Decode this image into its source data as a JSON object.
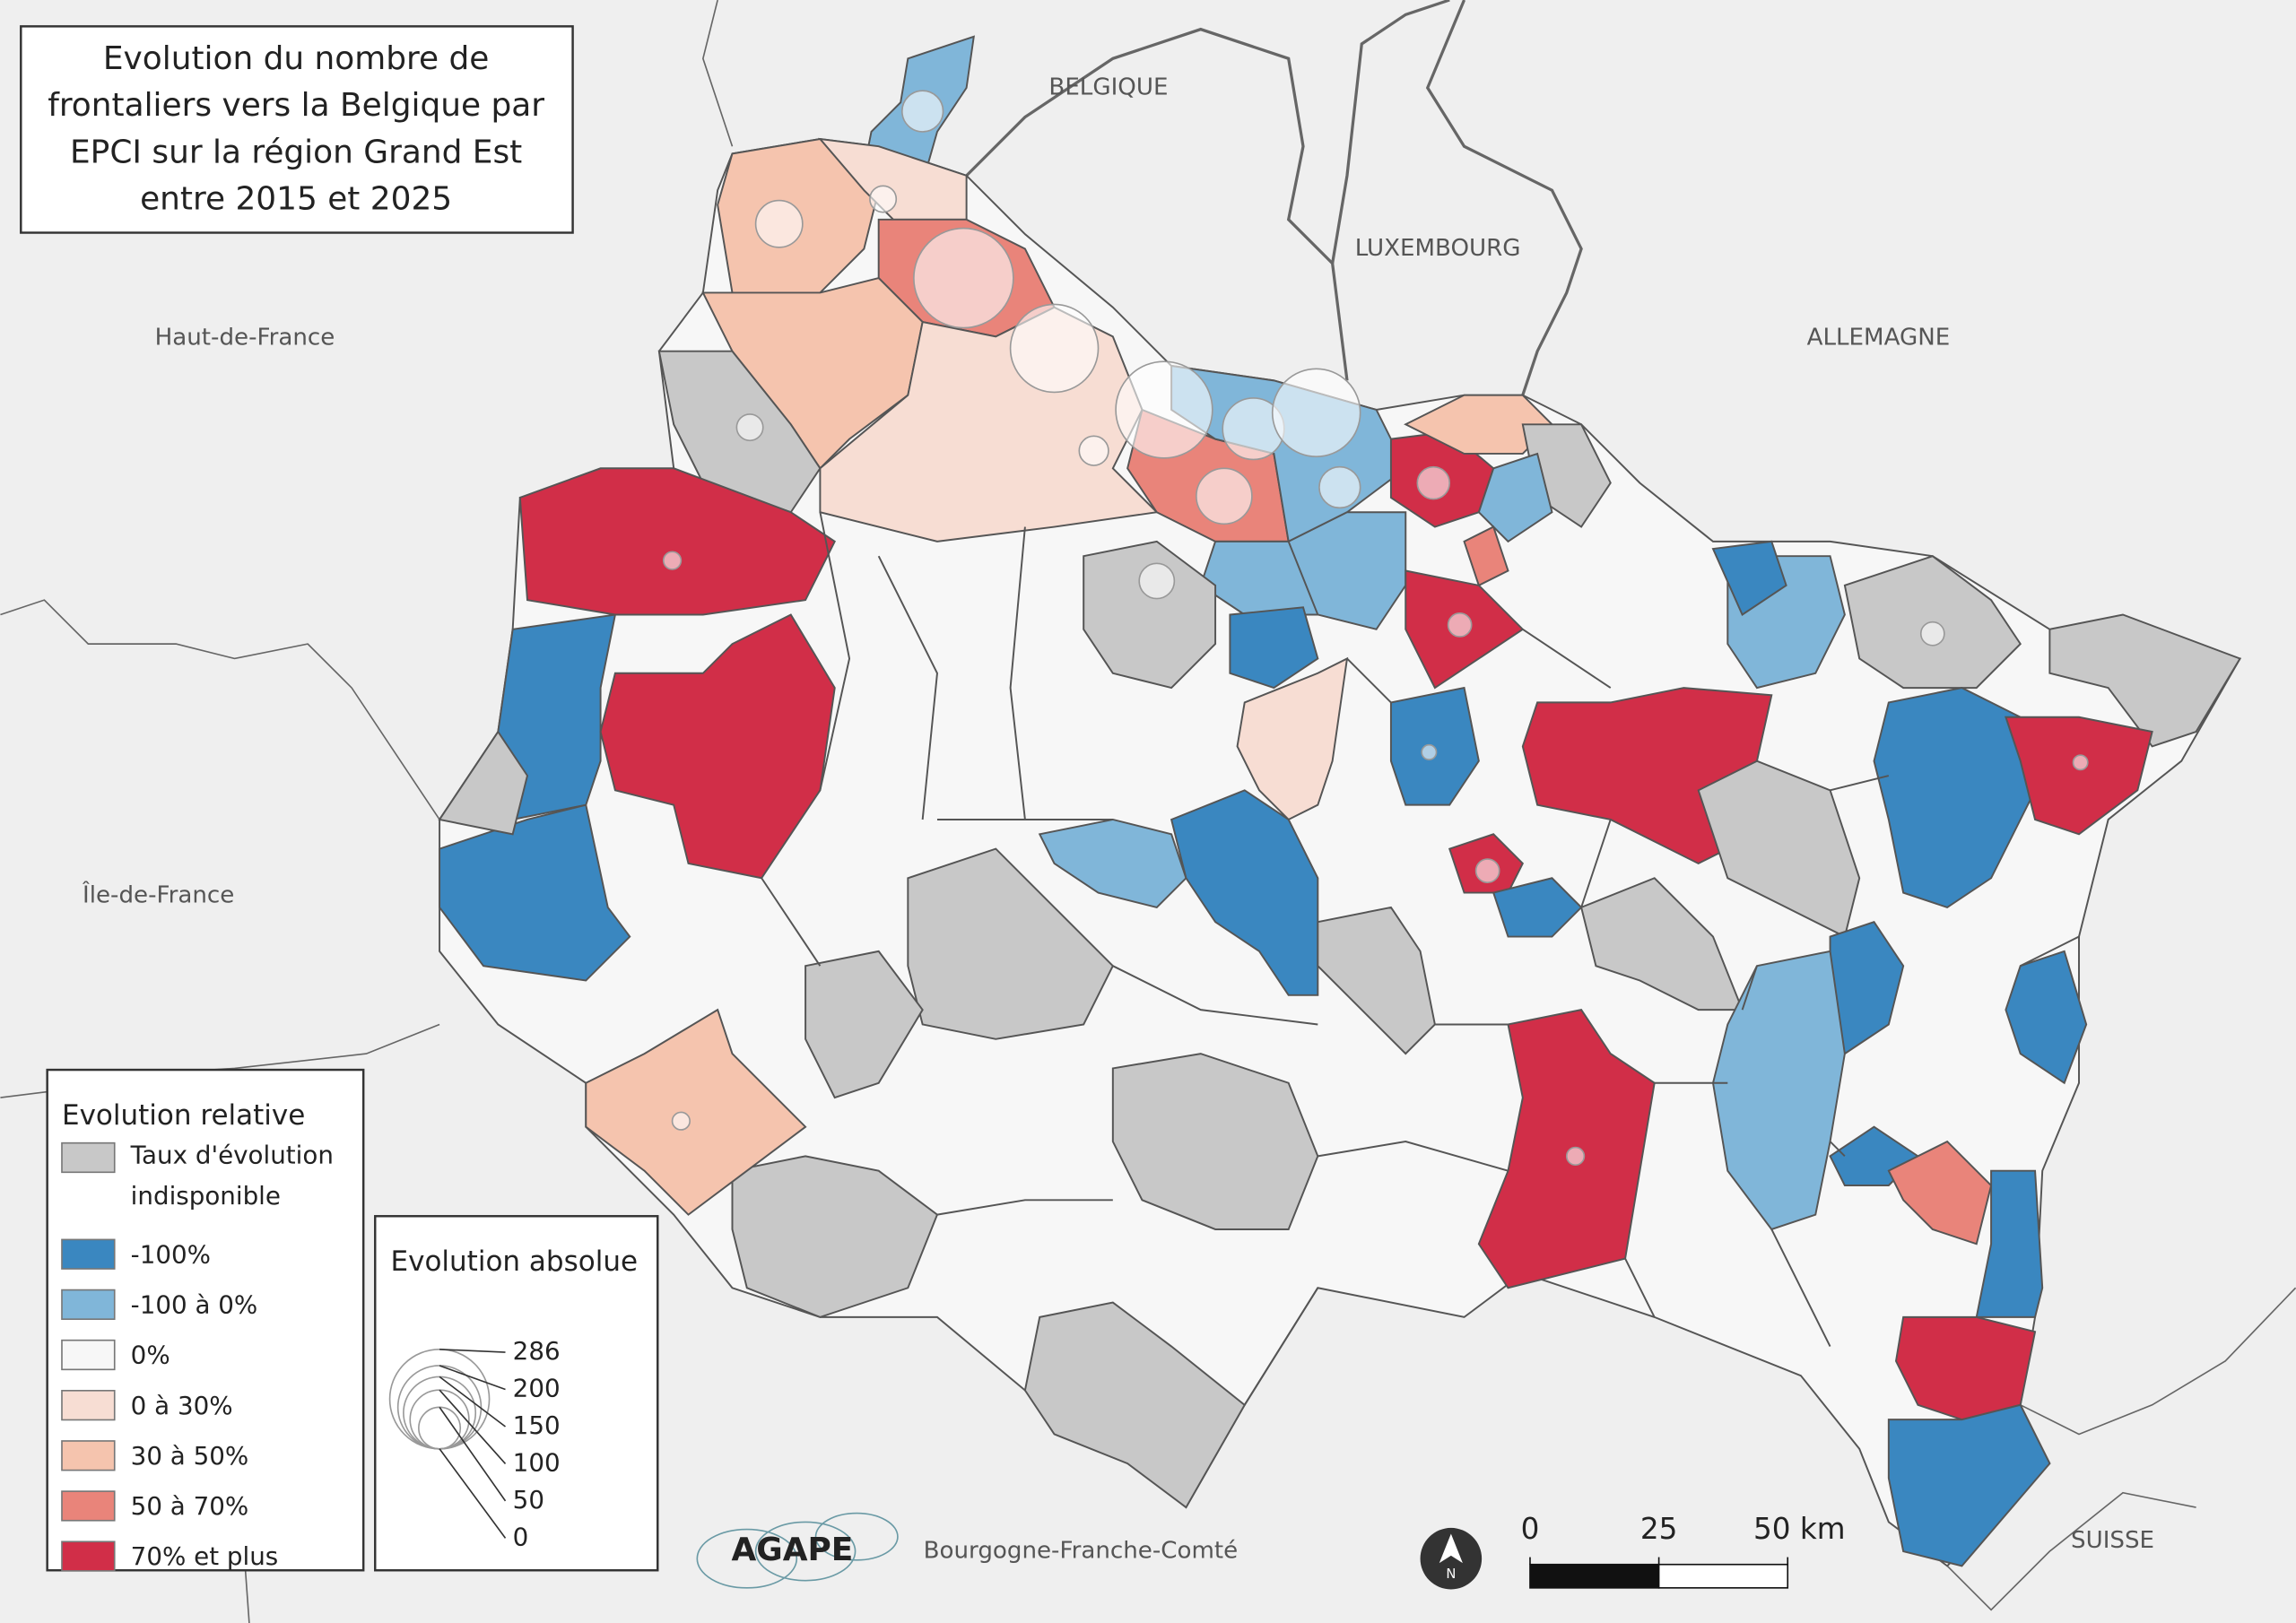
{
  "title_lines": [
    "Evolution du nombre de",
    "frontaliers vers la Belgique par",
    "EPCI sur la région Grand Est",
    "entre 2015 et 2025"
  ],
  "places": [
    "BELGIQUE",
    "LUXEMBOURG",
    "ALLEMAGNE",
    "Haut-de-France",
    "Île-de-France",
    "Bourgogne-Franche-Comté",
    "SUISSE"
  ],
  "legend_relative": {
    "title": "Evolution relative",
    "items": [
      {
        "label": [
          "Taux d'évolution",
          "indisponible"
        ],
        "color": "#c8c8c8"
      },
      {
        "label": "-100%",
        "color": "#3a87c0"
      },
      {
        "label": "-100 à 0%",
        "color": "#80b6d9"
      },
      {
        "label": "0%",
        "color": "#f7f7f7"
      },
      {
        "label": "0 à 30%",
        "color": "#f7ddd3"
      },
      {
        "label": "30 à 50%",
        "color": "#f5c4ae"
      },
      {
        "label": "50 à 70%",
        "color": "#e9847a"
      },
      {
        "label": "70% et plus",
        "color": "#d12e48"
      }
    ]
  },
  "legend_absolute": {
    "title": "Evolution absolue",
    "sizes": [
      286,
      200,
      150,
      100,
      50,
      0
    ]
  },
  "north": "N",
  "scale_bar": {
    "ticks": [
      0,
      25,
      {
        "value": 50,
        "label": "50 km"
      }
    ],
    "max": 50
  },
  "logo": "AGAPE"
}
